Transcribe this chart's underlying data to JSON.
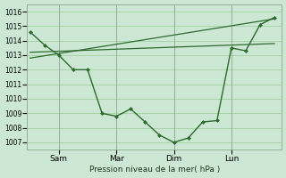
{
  "background_color": "#cce8d4",
  "grid_color": "#99cc99",
  "line_color": "#2d6a2d",
  "marker_color": "#2d6a2d",
  "xlabel": "Pression niveau de la mer( hPa )",
  "ylim": [
    1006.5,
    1016.5
  ],
  "yticks": [
    1007,
    1008,
    1009,
    1010,
    1011,
    1012,
    1013,
    1014,
    1015,
    1016
  ],
  "x_tick_labels": [
    "Sam",
    "Mar",
    "Dim",
    "Lun"
  ],
  "x_tick_positions": [
    2,
    6,
    10,
    14
  ],
  "x_vlines": [
    2,
    6,
    10,
    14
  ],
  "xlim": [
    -0.2,
    17.5
  ],
  "trend1_x": [
    0,
    17
  ],
  "trend1_y": [
    1012.8,
    1015.5
  ],
  "trend2_x": [
    0,
    17
  ],
  "trend2_y": [
    1013.2,
    1013.8
  ],
  "main_x": [
    0,
    1,
    2,
    3,
    4,
    5,
    6,
    7,
    8,
    9,
    10,
    11,
    12,
    13,
    14,
    15,
    16,
    17
  ],
  "main_y": [
    1014.6,
    1013.7,
    1013.0,
    1012.0,
    1012.0,
    1009.0,
    1008.8,
    1009.3,
    1008.4,
    1007.5,
    1007.0,
    1007.3,
    1008.4,
    1008.5,
    1013.5,
    1013.3,
    1015.1,
    1015.6
  ]
}
